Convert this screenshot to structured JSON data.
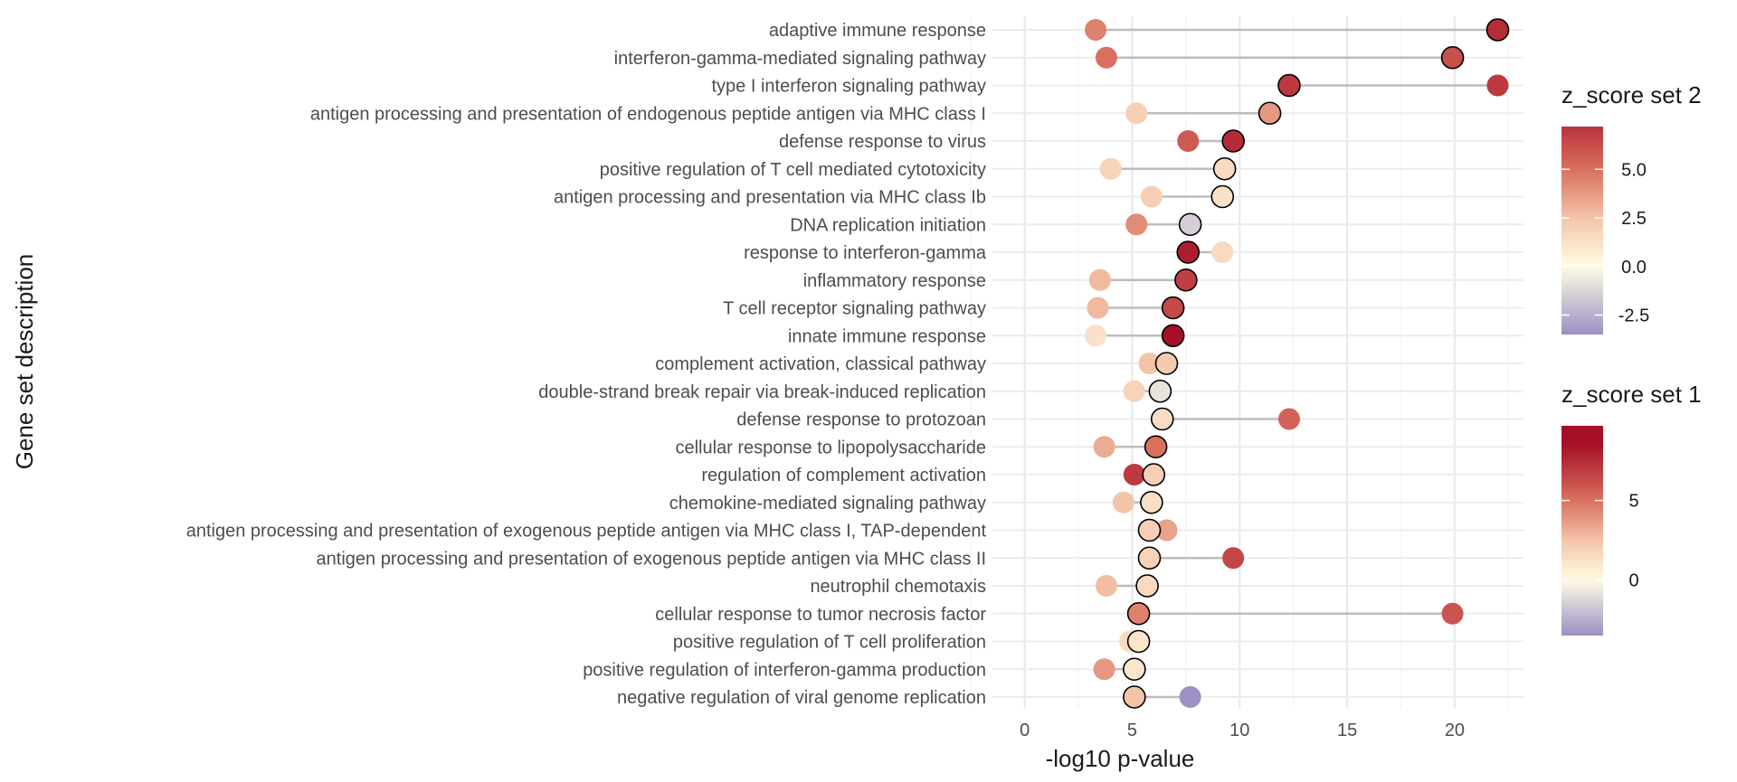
{
  "chart_data": {
    "type": "scatter",
    "subtype": "dumbbell",
    "xlabel": "-log10 p-value",
    "ylabel": "Gene set description",
    "xlim": [
      -1.5,
      23.2
    ],
    "xticks": [
      0,
      5,
      10,
      15,
      20
    ],
    "grid": true,
    "color_scale": [
      "#9C90C4",
      "#FFFCE4",
      "#F4C4A8",
      "#D9705F",
      "#A50F27"
    ],
    "categories": [
      "adaptive immune response",
      "interferon-gamma-mediated signaling pathway",
      "type I interferon signaling pathway",
      "antigen processing and presentation of endogenous peptide antigen via MHC class I",
      "defense response to virus",
      "positive regulation of T cell mediated cytotoxicity",
      "antigen processing and presentation via MHC class Ib",
      "DNA replication initiation",
      "response to interferon-gamma",
      "inflammatory response",
      "T cell receptor signaling pathway",
      "innate immune response",
      "complement activation, classical pathway",
      "double-strand break repair via break-induced replication",
      "defense response to protozoan",
      "cellular response to lipopolysaccharide",
      "regulation of complement activation",
      "chemokine-mediated signaling pathway",
      "antigen processing and presentation of exogenous peptide antigen via MHC class I, TAP-dependent",
      "antigen processing and presentation of exogenous peptide antigen via MHC class II",
      "neutrophil chemotaxis",
      "cellular response to tumor necrosis factor",
      "positive regulation of T cell proliferation",
      "positive regulation of interferon-gamma production",
      "negative regulation of viral genome replication"
    ],
    "series": [
      {
        "name": "set 1",
        "outlined": true,
        "x": [
          22.0,
          19.9,
          12.3,
          11.4,
          9.7,
          9.3,
          9.2,
          7.7,
          7.6,
          7.5,
          6.9,
          6.9,
          6.6,
          6.3,
          6.4,
          6.1,
          6.0,
          5.9,
          5.8,
          5.8,
          5.7,
          5.3,
          5.3,
          5.1,
          5.1
        ],
        "z": [
          7.4,
          6.2,
          7.0,
          3.8,
          7.5,
          1.5,
          1.2,
          -1.5,
          8.0,
          6.8,
          6.4,
          9.5,
          2.2,
          -0.8,
          1.4,
          5.0,
          2.0,
          1.3,
          2.0,
          1.8,
          1.5,
          4.5,
          1.0,
          1.0,
          2.5
        ]
      },
      {
        "name": "set 2",
        "outlined": false,
        "x": [
          3.3,
          3.8,
          22.0,
          5.2,
          7.6,
          4.0,
          5.9,
          5.2,
          9.2,
          3.5,
          3.4,
          3.3,
          5.8,
          5.1,
          12.3,
          3.7,
          5.1,
          4.6,
          6.6,
          9.7,
          3.8,
          19.9,
          4.9,
          3.7,
          7.7
        ],
        "z": [
          4.5,
          5.0,
          7.0,
          2.0,
          5.8,
          1.8,
          2.0,
          4.2,
          1.5,
          2.8,
          2.8,
          1.2,
          2.5,
          1.8,
          5.5,
          3.2,
          7.0,
          2.5,
          3.5,
          6.5,
          2.7,
          6.0,
          1.5,
          3.8,
          -3.5
        ]
      }
    ],
    "legends": [
      {
        "title": "z_score set 2",
        "range": [
          -3.5,
          7.2
        ],
        "ticks": [
          -2.5,
          0.0,
          2.5,
          5.0
        ],
        "tick_labels": [
          "-2.5",
          "0.0",
          "2.5",
          "5.0"
        ]
      },
      {
        "title": "z_score set 1",
        "range": [
          -3.5,
          9.7
        ],
        "ticks": [
          0,
          5
        ],
        "tick_labels": [
          "0",
          "5"
        ]
      }
    ]
  }
}
